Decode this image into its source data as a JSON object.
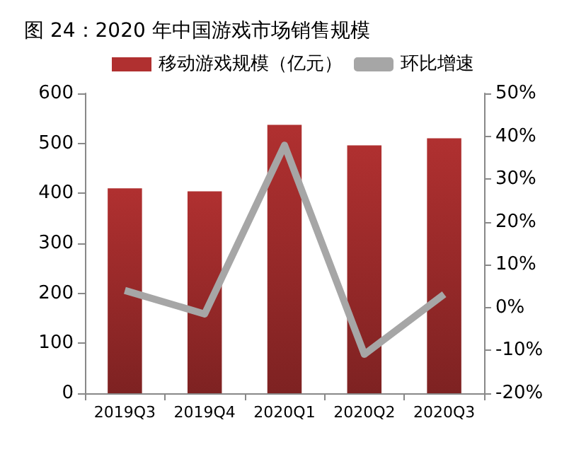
{
  "chart_data": {
    "type": "bar",
    "title": "图 24：2020 年中国游戏市场销售规模",
    "categories": [
      "2019Q3",
      "2019Q4",
      "2020Q1",
      "2020Q2",
      "2020Q3"
    ],
    "series": [
      {
        "name": "移动游戏规模（亿元）",
        "color": "#b03030",
        "values": [
          410,
          404,
          537,
          496,
          510
        ]
      },
      {
        "name": "环比增速",
        "type": "line",
        "axis": "y2",
        "color": "#a6a6a6",
        "values": [
          4.0,
          -1.5,
          37.9,
          -10.9,
          3.1
        ]
      }
    ],
    "ylim": [
      0,
      600
    ],
    "yticks": [
      0,
      100,
      200,
      300,
      400,
      500,
      600
    ],
    "y2lim": [
      -20,
      50
    ],
    "y2ticks": [
      {
        "value": -20,
        "label": "-20%"
      },
      {
        "value": -10,
        "label": "-10%"
      },
      {
        "value": 0,
        "label": "0%"
      },
      {
        "value": 10,
        "label": "10%"
      },
      {
        "value": 20,
        "label": "20%"
      },
      {
        "value": 30,
        "label": "30%"
      },
      {
        "value": 40,
        "label": "40%"
      },
      {
        "value": 50,
        "label": "50%"
      }
    ],
    "legend": "top",
    "marker": "none",
    "line_style": "solid"
  }
}
